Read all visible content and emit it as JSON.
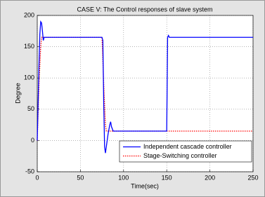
{
  "chart_data": {
    "type": "line",
    "title": "CASE V: The Control responses of slave system",
    "x_label": "Time(sec)",
    "y_label": "Degree",
    "xlim": [
      0,
      250
    ],
    "xticks": [
      0,
      50,
      100,
      150,
      200,
      250
    ],
    "ylim": [
      -50,
      200
    ],
    "yticks": [
      -50,
      0,
      50,
      100,
      150,
      200
    ],
    "grid": true,
    "legend": "lower right",
    "series": [
      {
        "name": "Independent cascade controller",
        "color": "#0000ff",
        "line_style": "solid",
        "x": [
          0,
          1,
          2,
          3,
          4,
          5,
          6,
          7,
          8,
          10,
          75,
          76,
          77,
          78,
          79,
          80,
          82,
          84,
          85,
          86,
          88,
          90,
          150,
          151,
          152,
          153,
          155,
          250
        ],
        "values": [
          0,
          60,
          120,
          170,
          190,
          188,
          175,
          160,
          165,
          165,
          165,
          160,
          60,
          -10,
          -20,
          -10,
          10,
          25,
          30,
          22,
          15,
          15,
          15,
          165,
          168,
          165,
          165,
          165
        ]
      },
      {
        "name": "Stage-Switching controller",
        "color": "#ff0000",
        "line_style": "dotted",
        "x": [
          0,
          2,
          4,
          5,
          75,
          77,
          79,
          80,
          250
        ],
        "values": [
          0,
          90,
          150,
          165,
          165,
          90,
          25,
          15,
          15
        ]
      }
    ]
  }
}
